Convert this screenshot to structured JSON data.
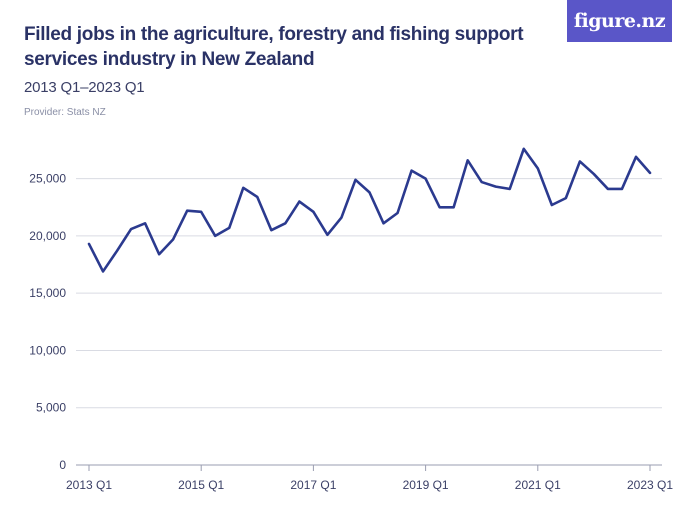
{
  "title": "Filled jobs in the agriculture, forestry and fishing support services industry in New Zealand",
  "subtitle": "2013 Q1–2023 Q1",
  "provider": "Provider: Stats NZ",
  "logo": "figure.nz",
  "colors": {
    "line": "#2b3a8f",
    "grid": "#d9dbe3",
    "logo_bg": "#5a56c8"
  },
  "chart_data": {
    "type": "line",
    "title": "Filled jobs in the agriculture, forestry and fishing support services industry in New Zealand",
    "xlabel": "",
    "ylabel": "",
    "ylim": [
      0,
      27500
    ],
    "grid": true,
    "y_ticks": [
      0,
      5000,
      10000,
      15000,
      20000,
      25000
    ],
    "y_tick_labels": [
      "0",
      "5,000",
      "10,000",
      "15,000",
      "20,000",
      "25,000"
    ],
    "x_tick_labels": [
      "2013 Q1",
      "2015 Q1",
      "2017 Q1",
      "2019 Q1",
      "2021 Q1",
      "2023 Q1"
    ],
    "x_tick_index": [
      0,
      8,
      16,
      24,
      32,
      40
    ],
    "x": [
      "2013 Q1",
      "2013 Q2",
      "2013 Q3",
      "2013 Q4",
      "2014 Q1",
      "2014 Q2",
      "2014 Q3",
      "2014 Q4",
      "2015 Q1",
      "2015 Q2",
      "2015 Q3",
      "2015 Q4",
      "2016 Q1",
      "2016 Q2",
      "2016 Q3",
      "2016 Q4",
      "2017 Q1",
      "2017 Q2",
      "2017 Q3",
      "2017 Q4",
      "2018 Q1",
      "2018 Q2",
      "2018 Q3",
      "2018 Q4",
      "2019 Q1",
      "2019 Q2",
      "2019 Q3",
      "2019 Q4",
      "2020 Q1",
      "2020 Q2",
      "2020 Q3",
      "2020 Q4",
      "2021 Q1",
      "2021 Q2",
      "2021 Q3",
      "2021 Q4",
      "2022 Q1",
      "2022 Q2",
      "2022 Q3",
      "2022 Q4",
      "2023 Q1"
    ],
    "series": [
      {
        "values": [
          19300,
          16900,
          18700,
          20600,
          21100,
          18400,
          19700,
          22200,
          22100,
          20000,
          20700,
          24200,
          23400,
          20500,
          21100,
          23000,
          22100,
          20100,
          21600,
          24900,
          23800,
          21100,
          22000,
          25700,
          25000,
          22500,
          22500,
          26600,
          24700,
          24300,
          24100,
          27600,
          25900,
          22700,
          23300,
          26500,
          25400,
          24100,
          24100,
          26900,
          25500
        ]
      }
    ]
  }
}
